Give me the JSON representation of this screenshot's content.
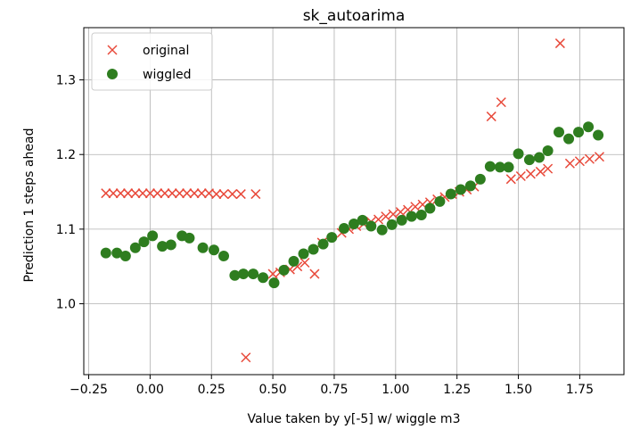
{
  "chart_data": {
    "type": "scatter",
    "title": "sk_autoarima",
    "xlabel": "Value taken by y[-5] w/ wiggle m3",
    "ylabel": "Prediction 1 steps ahead",
    "xlim": [
      -0.27,
      1.93
    ],
    "ylim": [
      0.905,
      1.37
    ],
    "xticks": [
      -0.25,
      0.0,
      0.25,
      0.5,
      0.75,
      1.0,
      1.25,
      1.5,
      1.75
    ],
    "xtick_labels": [
      "−0.25",
      "0.00",
      "0.25",
      "0.50",
      "0.75",
      "1.00",
      "1.25",
      "1.50",
      "1.75"
    ],
    "yticks": [
      1.0,
      1.1,
      1.2,
      1.3
    ],
    "ytick_labels": [
      "1.0",
      "1.1",
      "1.2",
      "1.3"
    ],
    "grid": true,
    "legend_position": "top-left",
    "series": [
      {
        "name": "original",
        "marker": "x",
        "color": "#e8493a",
        "points": [
          [
            -0.18,
            1.148
          ],
          [
            -0.15,
            1.148
          ],
          [
            -0.12,
            1.148
          ],
          [
            -0.09,
            1.148
          ],
          [
            -0.06,
            1.148
          ],
          [
            -0.03,
            1.148
          ],
          [
            0.0,
            1.148
          ],
          [
            0.03,
            1.148
          ],
          [
            0.06,
            1.148
          ],
          [
            0.09,
            1.148
          ],
          [
            0.12,
            1.148
          ],
          [
            0.15,
            1.148
          ],
          [
            0.18,
            1.148
          ],
          [
            0.21,
            1.148
          ],
          [
            0.24,
            1.148
          ],
          [
            0.27,
            1.147
          ],
          [
            0.3,
            1.147
          ],
          [
            0.335,
            1.147
          ],
          [
            0.37,
            1.147
          ],
          [
            0.39,
            0.928
          ],
          [
            0.43,
            1.147
          ],
          [
            0.5,
            1.04
          ],
          [
            0.53,
            1.042
          ],
          [
            0.57,
            1.046
          ],
          [
            0.6,
            1.05
          ],
          [
            0.63,
            1.055
          ],
          [
            0.67,
            1.04
          ],
          [
            0.7,
            1.082
          ],
          [
            0.78,
            1.095
          ],
          [
            0.81,
            1.1
          ],
          [
            0.84,
            1.104
          ],
          [
            0.87,
            1.107
          ],
          [
            0.9,
            1.11
          ],
          [
            0.93,
            1.113
          ],
          [
            0.96,
            1.117
          ],
          [
            0.99,
            1.12
          ],
          [
            1.02,
            1.123
          ],
          [
            1.05,
            1.126
          ],
          [
            1.08,
            1.13
          ],
          [
            1.11,
            1.133
          ],
          [
            1.14,
            1.136
          ],
          [
            1.17,
            1.14
          ],
          [
            1.2,
            1.143
          ],
          [
            1.23,
            1.147
          ],
          [
            1.26,
            1.15
          ],
          [
            1.29,
            1.153
          ],
          [
            1.32,
            1.157
          ],
          [
            1.39,
            1.251
          ],
          [
            1.43,
            1.27
          ],
          [
            1.47,
            1.167
          ],
          [
            1.51,
            1.171
          ],
          [
            1.55,
            1.174
          ],
          [
            1.59,
            1.177
          ],
          [
            1.62,
            1.181
          ],
          [
            1.67,
            1.349
          ],
          [
            1.71,
            1.188
          ],
          [
            1.75,
            1.191
          ],
          [
            1.79,
            1.194
          ],
          [
            1.83,
            1.197
          ]
        ]
      },
      {
        "name": "wiggled",
        "marker": "o",
        "color": "#2e7d1f",
        "points": [
          [
            -0.18,
            1.068
          ],
          [
            -0.135,
            1.068
          ],
          [
            -0.1,
            1.064
          ],
          [
            -0.06,
            1.075
          ],
          [
            -0.025,
            1.083
          ],
          [
            0.01,
            1.091
          ],
          [
            0.05,
            1.077
          ],
          [
            0.085,
            1.079
          ],
          [
            0.13,
            1.091
          ],
          [
            0.16,
            1.088
          ],
          [
            0.215,
            1.075
          ],
          [
            0.26,
            1.072
          ],
          [
            0.3,
            1.064
          ],
          [
            0.345,
            1.038
          ],
          [
            0.38,
            1.04
          ],
          [
            0.42,
            1.04
          ],
          [
            0.46,
            1.035
          ],
          [
            0.505,
            1.028
          ],
          [
            0.545,
            1.045
          ],
          [
            0.585,
            1.057
          ],
          [
            0.625,
            1.067
          ],
          [
            0.665,
            1.073
          ],
          [
            0.705,
            1.08
          ],
          [
            0.74,
            1.089
          ],
          [
            0.79,
            1.101
          ],
          [
            0.83,
            1.107
          ],
          [
            0.865,
            1.112
          ],
          [
            0.9,
            1.104
          ],
          [
            0.945,
            1.099
          ],
          [
            0.985,
            1.106
          ],
          [
            1.025,
            1.112
          ],
          [
            1.065,
            1.117
          ],
          [
            1.105,
            1.119
          ],
          [
            1.14,
            1.128
          ],
          [
            1.18,
            1.137
          ],
          [
            1.225,
            1.147
          ],
          [
            1.265,
            1.153
          ],
          [
            1.305,
            1.158
          ],
          [
            1.345,
            1.167
          ],
          [
            1.385,
            1.184
          ],
          [
            1.425,
            1.183
          ],
          [
            1.46,
            1.183
          ],
          [
            1.5,
            1.201
          ],
          [
            1.545,
            1.193
          ],
          [
            1.585,
            1.196
          ],
          [
            1.62,
            1.205
          ],
          [
            1.665,
            1.23
          ],
          [
            1.705,
            1.221
          ],
          [
            1.745,
            1.23
          ],
          [
            1.785,
            1.237
          ],
          [
            1.825,
            1.226
          ]
        ]
      }
    ]
  }
}
